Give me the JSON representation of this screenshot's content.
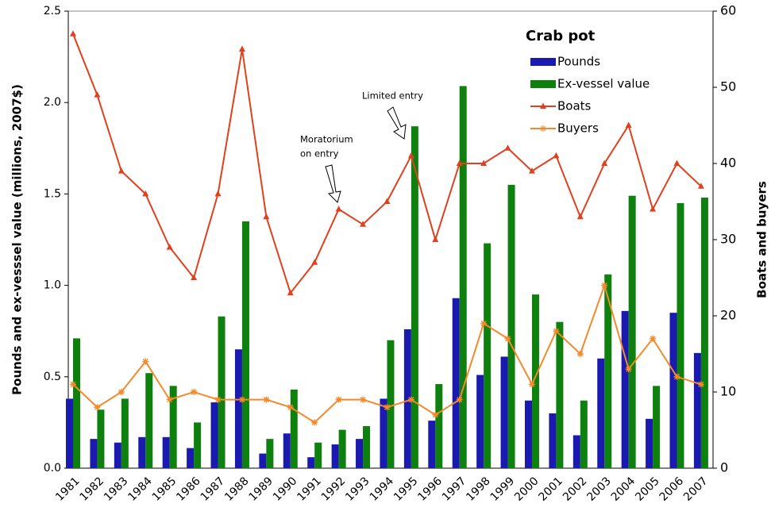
{
  "chart_data": {
    "type": "bar-line",
    "legend_title": "Crab pot",
    "ylabel": "Pounds and ex-vesssel value (millions, 2007$)",
    "y2label": "Boats and buyers",
    "categories": [
      "1981",
      "1982",
      "1983",
      "1984",
      "1985",
      "1986",
      "1987",
      "1988",
      "1989",
      "1990",
      "1991",
      "1992",
      "1993",
      "1994",
      "1995",
      "1996",
      "1997",
      "1998",
      "1999",
      "2000",
      "2001",
      "2002",
      "2003",
      "2004",
      "2005",
      "2006",
      "2007"
    ],
    "series": [
      {
        "name": "Pounds",
        "kind": "bar",
        "color": "#1a1ab0",
        "values": [
          0.38,
          0.16,
          0.14,
          0.17,
          0.17,
          0.11,
          0.36,
          0.65,
          0.08,
          0.19,
          0.06,
          0.13,
          0.16,
          0.38,
          0.76,
          0.26,
          0.93,
          0.51,
          0.61,
          0.37,
          0.3,
          0.18,
          0.6,
          0.86,
          0.27,
          0.85,
          0.63
        ]
      },
      {
        "name": "Ex-vessel value",
        "kind": "bar",
        "color": "#0e800e",
        "values": [
          0.71,
          0.32,
          0.38,
          0.52,
          0.45,
          0.25,
          0.83,
          1.35,
          0.16,
          0.43,
          0.14,
          0.21,
          0.23,
          0.7,
          1.87,
          0.46,
          2.09,
          1.23,
          1.55,
          0.95,
          0.8,
          0.37,
          1.06,
          1.49,
          0.45,
          1.45,
          1.48
        ]
      },
      {
        "name": "Boats",
        "kind": "line",
        "marker": "triangle",
        "axis": "y2",
        "color": "#e0401c",
        "values": [
          57,
          49,
          39,
          36,
          29,
          25,
          36,
          55,
          33,
          23,
          27,
          34,
          32,
          35,
          41,
          30,
          40,
          40,
          42,
          39,
          41,
          33,
          40,
          45,
          34,
          40,
          37
        ]
      },
      {
        "name": "Buyers",
        "kind": "line",
        "marker": "star",
        "axis": "y2",
        "color": "#f5892a",
        "values": [
          11,
          8,
          10,
          14,
          9,
          10,
          9,
          9,
          9,
          8,
          6,
          9,
          9,
          8,
          9,
          7,
          9,
          19,
          17,
          11,
          18,
          15,
          24,
          13,
          17,
          12,
          11
        ]
      }
    ],
    "ylim": [
      0,
      2.5
    ],
    "yticks": [
      {
        "value": 0,
        "label": "0.0"
      },
      0.5,
      {
        "value": 1,
        "label": "1.0"
      },
      1.5,
      {
        "value": 2,
        "label": "2.0"
      },
      2.5
    ],
    "y2lim": [
      0,
      60
    ],
    "y2ticks": [
      0,
      10,
      20,
      30,
      40,
      50,
      60
    ],
    "annotations": [
      [
        "Moratorium",
        "on entry"
      ],
      [
        "Limited entry"
      ]
    ]
  }
}
